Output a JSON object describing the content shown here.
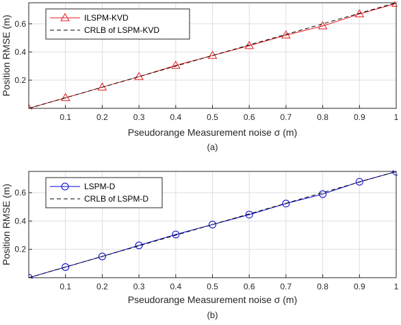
{
  "chart_data": [
    {
      "type": "line",
      "caption": "(a)",
      "xlabel": "Pseudorange Measurement noise σ (m)",
      "ylabel": "Position RMSE (m)",
      "xlim": [
        0,
        1
      ],
      "ylim": [
        0,
        0.75
      ],
      "xticks": [
        0.1,
        0.2,
        0.3,
        0.4,
        0.5,
        0.6,
        0.7,
        0.8,
        0.9,
        1
      ],
      "yticks": [
        0.2,
        0.4,
        0.6
      ],
      "grid": true,
      "legend": "top-left",
      "x": [
        0,
        0.1,
        0.2,
        0.3,
        0.4,
        0.5,
        0.6,
        0.7,
        0.8,
        0.9,
        1
      ],
      "series": [
        {
          "name": "ILSPM-KVD",
          "color": "#e41a1c",
          "marker": "triangle",
          "dash": false,
          "values": [
            0.0,
            0.075,
            0.15,
            0.225,
            0.305,
            0.375,
            0.445,
            0.52,
            0.585,
            0.67,
            0.745
          ]
        },
        {
          "name": "CRLB of LSPM-KVD",
          "color": "#000000",
          "marker": "none",
          "dash": true,
          "values": [
            0.0,
            0.075,
            0.15,
            0.225,
            0.3,
            0.375,
            0.45,
            0.525,
            0.6,
            0.675,
            0.75
          ]
        }
      ]
    },
    {
      "type": "line",
      "caption": "(b)",
      "xlabel": "Pseudorange Measurement noise σ (m)",
      "ylabel": "Position RMSE (m)",
      "xlim": [
        0,
        1
      ],
      "ylim": [
        0,
        0.75
      ],
      "xticks": [
        0.1,
        0.2,
        0.3,
        0.4,
        0.5,
        0.6,
        0.7,
        0.8,
        0.9,
        1
      ],
      "yticks": [
        0.2,
        0.4,
        0.6
      ],
      "grid": true,
      "legend": "top-left",
      "x": [
        0,
        0.1,
        0.2,
        0.3,
        0.4,
        0.5,
        0.6,
        0.7,
        0.8,
        0.9,
        1
      ],
      "series": [
        {
          "name": "LSPM-D",
          "color": "#0000cc",
          "marker": "circle",
          "dash": false,
          "values": [
            0.0,
            0.075,
            0.15,
            0.228,
            0.305,
            0.375,
            0.445,
            0.523,
            0.59,
            0.677,
            0.748
          ]
        },
        {
          "name": "CRLB of LSPM-D",
          "color": "#000000",
          "marker": "none",
          "dash": true,
          "values": [
            0.0,
            0.075,
            0.15,
            0.225,
            0.3,
            0.375,
            0.45,
            0.525,
            0.6,
            0.675,
            0.75
          ]
        }
      ]
    }
  ]
}
